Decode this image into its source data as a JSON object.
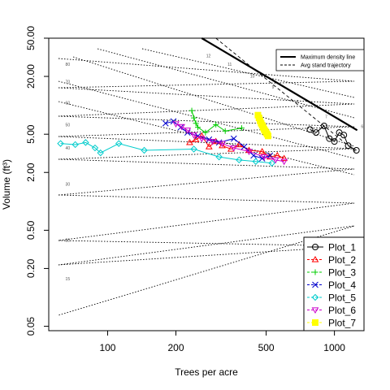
{
  "chart_data": {
    "type": "scatter",
    "xlabel": "Trees per acre",
    "ylabel": "Volume (ft³)",
    "x_scale": "log",
    "y_scale": "log",
    "xlim": [
      55,
      1350
    ],
    "ylim": [
      0.045,
      50
    ],
    "x_ticks": [
      100,
      200,
      500,
      1000
    ],
    "y_ticks": [
      0.05,
      0.2,
      0.5,
      2.0,
      5.0,
      20.0,
      50.0
    ],
    "y_tick_labels": [
      "0.05",
      "0.20",
      "0.50",
      "2.00",
      "5.00",
      "20.00",
      "50.00"
    ],
    "grid": false,
    "max_density_line": {
      "x": [
        260,
        1260
      ],
      "y": [
        50,
        5.5
      ]
    },
    "avg_trajectory": {
      "x": [
        300,
        1260
      ],
      "y": [
        50,
        3.2
      ]
    },
    "line_legend": [
      {
        "label": "Maximum density line",
        "style": "solid-thick"
      },
      {
        "label": "Avg stand trajectory",
        "style": "dashed"
      }
    ],
    "legend_position": "bottom-right",
    "left_labels": [
      {
        "text": "80",
        "x": 60,
        "y": 25.8
      },
      {
        "text": "70",
        "x": 60,
        "y": 16.9
      },
      {
        "text": "60",
        "x": 60,
        "y": 10.2
      },
      {
        "text": "50",
        "x": 60,
        "y": 6.05
      },
      {
        "text": "40",
        "x": 60,
        "y": 3.45
      },
      {
        "text": "30",
        "x": 60,
        "y": 1.45
      },
      {
        "text": "20",
        "x": 60,
        "y": 0.38
      },
      {
        "text": "15",
        "x": 60,
        "y": 0.15
      }
    ],
    "right_labels": [
      {
        "text": "12",
        "x": 272,
        "y": 31.5
      },
      {
        "text": "11",
        "x": 338,
        "y": 25.8
      },
      {
        "text": "10",
        "x": 425,
        "y": 19.5
      },
      {
        "text": "9",
        "x": 530,
        "y": 14.9
      },
      {
        "text": "8",
        "x": 680,
        "y": 10.5
      },
      {
        "text": "7",
        "x": 910,
        "y": 7.35
      },
      {
        "text": "6",
        "x": 1310,
        "y": 5.8
      }
    ],
    "series": [
      {
        "name": "Plot_1",
        "color": "#000000",
        "marker": "circle",
        "x": [
          780,
          830,
          900,
          950,
          1000,
          1050,
          1100,
          1150,
          1250
        ],
        "y": [
          5.6,
          5.2,
          6.1,
          4.5,
          4.2,
          5.2,
          4.9,
          3.8,
          3.4
        ]
      },
      {
        "name": "Plot_2",
        "color": "#ff0000",
        "marker": "triangle-up",
        "x": [
          230,
          245,
          260,
          280,
          300,
          320,
          350,
          380,
          420,
          480,
          520,
          560,
          600
        ],
        "y": [
          4.1,
          4.4,
          4.8,
          3.7,
          4.2,
          3.8,
          3.5,
          3.9,
          3.4,
          3.3,
          2.9,
          3.0,
          2.8
        ]
      },
      {
        "name": "Plot_3",
        "color": "#00cc00",
        "marker": "plus",
        "x": [
          235,
          240,
          245,
          250,
          270,
          300,
          330,
          390
        ],
        "y": [
          8.8,
          7.4,
          6.5,
          5.9,
          5.2,
          6.3,
          5.4,
          5.8
        ]
      },
      {
        "name": "Plot_4",
        "color": "#0000cc",
        "marker": "cross",
        "x": [
          180,
          195,
          210,
          225,
          250,
          280,
          310,
          360,
          400,
          440,
          480,
          520
        ],
        "y": [
          6.5,
          6.8,
          5.9,
          5.2,
          4.8,
          4.4,
          4.1,
          4.5,
          3.7,
          3.0,
          2.8,
          3.0
        ]
      },
      {
        "name": "Plot_5",
        "color": "#00cccc",
        "marker": "diamond",
        "x": [
          62,
          72,
          80,
          88,
          93,
          112,
          145,
          240,
          310,
          380,
          450,
          530
        ],
        "y": [
          4.0,
          3.9,
          4.1,
          3.6,
          3.2,
          4.0,
          3.4,
          3.5,
          2.9,
          2.7,
          2.6,
          2.5
        ]
      },
      {
        "name": "Plot_6",
        "color": "#cc00cc",
        "marker": "triangle-down",
        "x": [
          200,
          212,
          225,
          240,
          260,
          290,
          320,
          360,
          420,
          490,
          550,
          600
        ],
        "y": [
          6.4,
          6.0,
          5.5,
          4.9,
          4.5,
          4.2,
          4.0,
          3.6,
          3.3,
          2.9,
          2.7,
          2.6
        ]
      },
      {
        "name": "Plot_7",
        "color": "#ffff00",
        "marker": "square",
        "x": [
          460,
          465,
          470,
          475,
          480,
          485,
          490,
          495,
          500,
          505,
          510
        ],
        "y": [
          7.9,
          7.4,
          6.9,
          6.5,
          6.2,
          5.9,
          5.6,
          5.4,
          5.2,
          5.0,
          4.8
        ]
      }
    ]
  }
}
